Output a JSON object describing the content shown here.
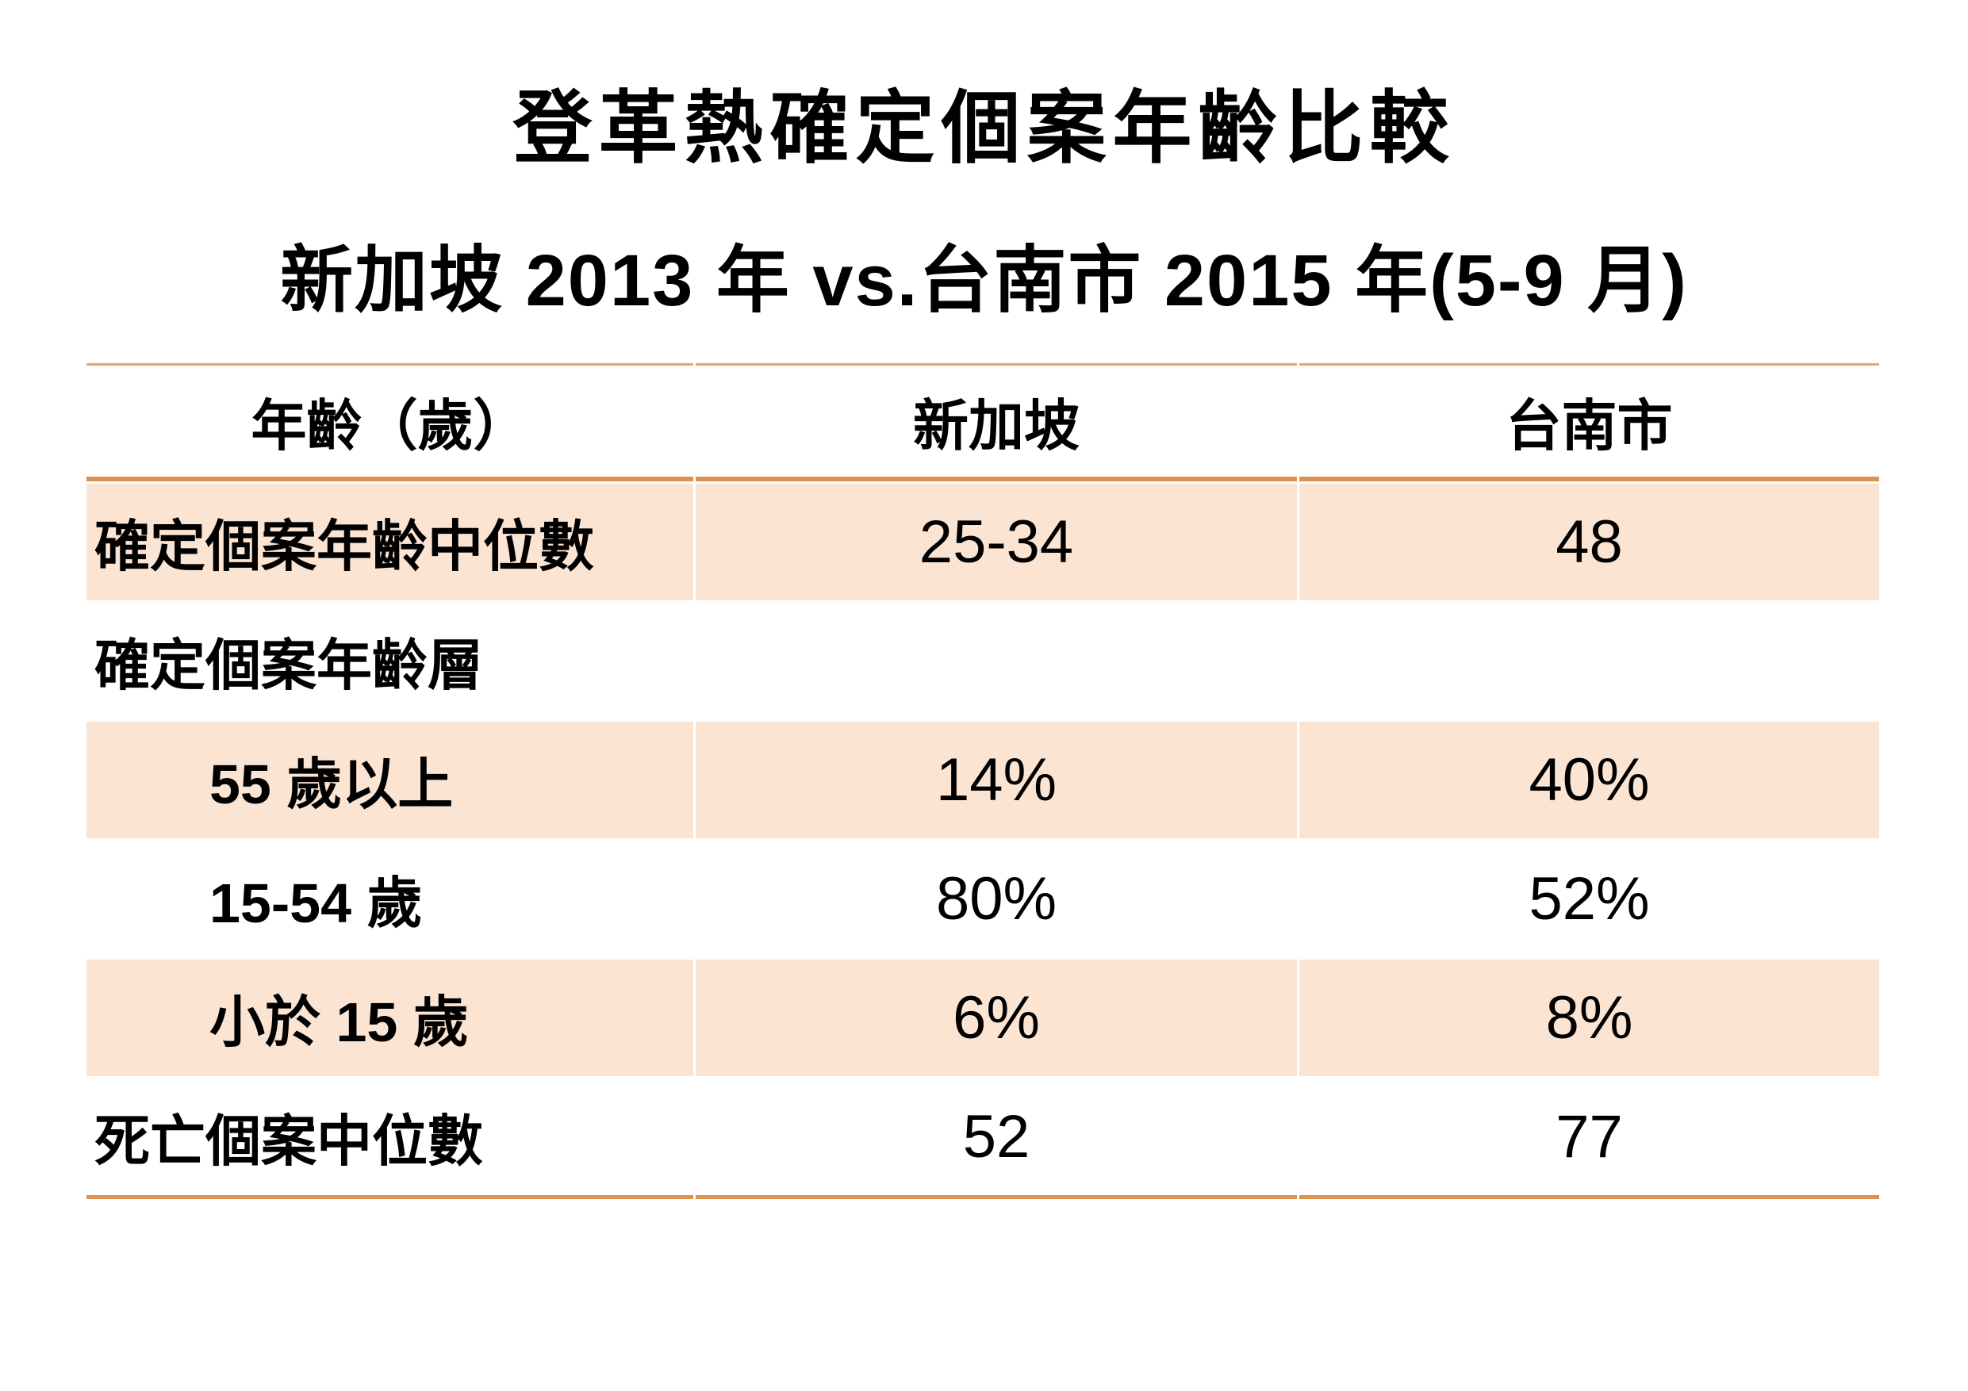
{
  "page": {
    "title": "登革熱確定個案年齡比較",
    "subtitle": "新加坡 2013 年 vs.台南市 2015 年(5-9 月)"
  },
  "table": {
    "columns": [
      "年齡（歲）",
      "新加坡",
      "台南市"
    ],
    "rows": [
      {
        "label": "確定個案年齡中位數",
        "singapore": "25-34",
        "tainan": "48"
      },
      {
        "label": "確定個案年齡層",
        "singapore": "",
        "tainan": ""
      },
      {
        "label": "55 歲以上",
        "singapore": "14%",
        "tainan": "40%"
      },
      {
        "label": "15-54 歲",
        "singapore": "80%",
        "tainan": "52%"
      },
      {
        "label": "小於 15 歲",
        "singapore": "6%",
        "tainan": "8%"
      },
      {
        "label": "死亡個案中位數",
        "singapore": "52",
        "tainan": "77"
      }
    ],
    "colors": {
      "row_shade": "#FCE4D3",
      "line_thin": "#E5A36F",
      "line_thick": "#DC9150",
      "text": "#000000",
      "background": "#FFFFFF"
    }
  }
}
